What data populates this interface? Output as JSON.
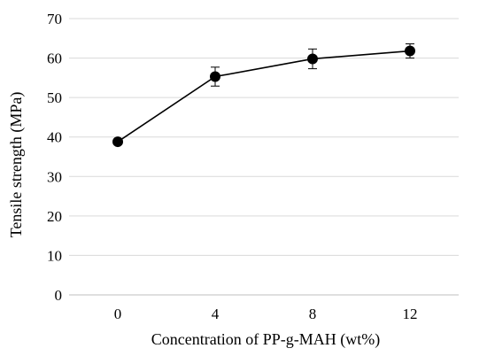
{
  "chart_data": {
    "type": "line",
    "title": "",
    "xlabel": "Concentration of PP-g-MAH (wt%)",
    "ylabel": "Tensile strength (MPa)",
    "categories": [
      "0",
      "4",
      "8",
      "12"
    ],
    "ylim": [
      0,
      70
    ],
    "yticks": [
      0,
      10,
      20,
      30,
      40,
      50,
      60,
      70
    ],
    "grid": true,
    "legend": "none",
    "series": [
      {
        "values": [
          38.8,
          55.3,
          59.8,
          61.8
        ],
        "errors": [
          0.6,
          2.4,
          2.5,
          1.8
        ],
        "color": "#000000",
        "marker": "circle"
      }
    ]
  }
}
